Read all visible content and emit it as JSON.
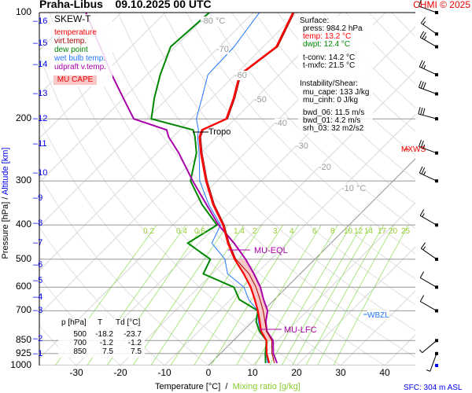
{
  "header": {
    "station": "Praha-Libus",
    "datetime": "09.10.2025 00 UTC",
    "credit": "CHMI © 2025"
  },
  "legend": {
    "title": "SKEW-T",
    "items": [
      {
        "label": "temperature",
        "color": "#ff0000"
      },
      {
        "label": "virt.temp.",
        "color": "#aa0000"
      },
      {
        "label": "dew point",
        "color": "#008800"
      },
      {
        "label": "wet bulb temp.",
        "color": "#2277ff"
      },
      {
        "label": "udpraft v.temp.",
        "color": "#aa00aa"
      }
    ],
    "cape_label": "MU CAPE"
  },
  "surface": {
    "title": "Surface:",
    "press": "press: 984.2 hPa",
    "temp": "temp: 13.2 °C",
    "dwpt": "dwpt: 12.4 °C",
    "tconv": "t-conv: 14.2 °C",
    "tmxfc": "t-mxfc: 21.5 °C"
  },
  "instability": {
    "title": "Instability/Shear:",
    "mu_cape": "mu_cape: 133 J/kg",
    "mu_cinh": "mu_cinh: 0 J/kg",
    "bwd_06": "bwd_06: 11.5 m/s",
    "bwd_01": "bwd_01: 4.2 m/s",
    "srh_03": "srh_03: 32 m2/s2"
  },
  "levels_table": {
    "headers": [
      "p [hPa]",
      "T",
      "Td [°C]"
    ],
    "rows": [
      [
        "500",
        "-18.2",
        "-23.7"
      ],
      [
        "700",
        "-1.2",
        "-1.2"
      ],
      [
        "850",
        "7.5",
        "7.5"
      ]
    ]
  },
  "annotations": {
    "tropo": "Tropo",
    "mu_eql": "MU-EQL",
    "mu_lfc": "MU-LFC",
    "wbzl": "WBZL",
    "mxws": "MXWS",
    "sfc": "SFC: 304 m ASL"
  },
  "chart_data": {
    "type": "skew-t",
    "xlabel": "Temperature [°C]",
    "xlabel_sep": "/",
    "xlabel2": "Mixing ratio [g/kg]",
    "ylabel": "Pressure [hPa]",
    "ylabel_sep": "/",
    "ylabel2": "Altitude [km]",
    "pressure_ticks": [
      100,
      200,
      300,
      400,
      500,
      600,
      700,
      850,
      925,
      1000
    ],
    "temperature_ticks": [
      -30,
      -20,
      -10,
      0,
      10,
      20,
      30,
      40
    ],
    "altitude_ticks_km": [
      1,
      2,
      3,
      4,
      5,
      6,
      7,
      8,
      9,
      10,
      11,
      12,
      13,
      14,
      15,
      16
    ],
    "altitude_tick_pressures": [
      925,
      840,
      700,
      640,
      575,
      520,
      450,
      395,
      335,
      285,
      235,
      200,
      170,
      140,
      122,
      106
    ],
    "isotherm_labels": [
      {
        "t": -80,
        "text": "-80 °C"
      },
      {
        "t": -70,
        "text": "-70"
      },
      {
        "t": -60,
        "text": "-60"
      },
      {
        "t": -50,
        "text": "-50"
      },
      {
        "t": -40,
        "text": "-40"
      },
      {
        "t": -30,
        "text": "-30"
      },
      {
        "t": -20,
        "text": "-20"
      },
      {
        "t": -10,
        "text": "-10 °C"
      }
    ],
    "mixing_ratio_labels": [
      "0.2",
      "0.4",
      "0.6",
      "1.4",
      "2",
      "3",
      "4",
      "6",
      "8",
      "10",
      "12",
      "14",
      "17",
      "20",
      "25"
    ],
    "pressure": [
      984,
      925,
      850,
      800,
      750,
      700,
      650,
      600,
      550,
      500,
      450,
      400,
      350,
      300,
      250,
      225,
      215,
      200,
      175,
      150,
      125,
      100
    ],
    "temperature": [
      13.2,
      10.5,
      7.5,
      4.2,
      1.6,
      -1.2,
      -4.5,
      -8.2,
      -12.8,
      -18.2,
      -23.4,
      -28.6,
      -35.5,
      -42.5,
      -50,
      -54,
      -55,
      -52,
      -55,
      -59,
      -57,
      -61
    ],
    "dewpoint": [
      12.4,
      10.2,
      7.5,
      3.8,
      0.8,
      -1.2,
      -8,
      -12,
      -22,
      -23.7,
      -32.5,
      -30,
      -38,
      -46,
      -51,
      -55,
      -57,
      -69,
      -73,
      -77,
      -81,
      -80
    ],
    "parcel_virtual_temperature": [
      15,
      12,
      9,
      5.5,
      3,
      1,
      -2.5,
      -6,
      -10.5,
      -15.7,
      -22,
      -29.6,
      -37,
      -45.5,
      -55,
      -61,
      -63,
      -73,
      -80,
      -88,
      -97,
      -108
    ],
    "wind_barbs": [
      {
        "p": 1000,
        "dir": 0,
        "spd": 0
      },
      {
        "p": 925,
        "dir": 200,
        "spd": 5
      },
      {
        "p": 850,
        "dir": 230,
        "spd": 5
      },
      {
        "p": 700,
        "dir": 300,
        "spd": 10
      },
      {
        "p": 600,
        "dir": 300,
        "spd": 10
      },
      {
        "p": 500,
        "dir": 305,
        "spd": 15
      },
      {
        "p": 400,
        "dir": 300,
        "spd": 15
      },
      {
        "p": 300,
        "dir": 295,
        "spd": 25
      },
      {
        "p": 250,
        "dir": 290,
        "spd": 25
      },
      {
        "p": 200,
        "dir": 285,
        "spd": 30
      },
      {
        "p": 170,
        "dir": 290,
        "spd": 30
      },
      {
        "p": 150,
        "dir": 295,
        "spd": 25
      },
      {
        "p": 125,
        "dir": 300,
        "spd": 25
      },
      {
        "p": 115,
        "dir": 305,
        "spd": 15
      },
      {
        "p": 100,
        "dir": 290,
        "spd": 10
      }
    ]
  }
}
